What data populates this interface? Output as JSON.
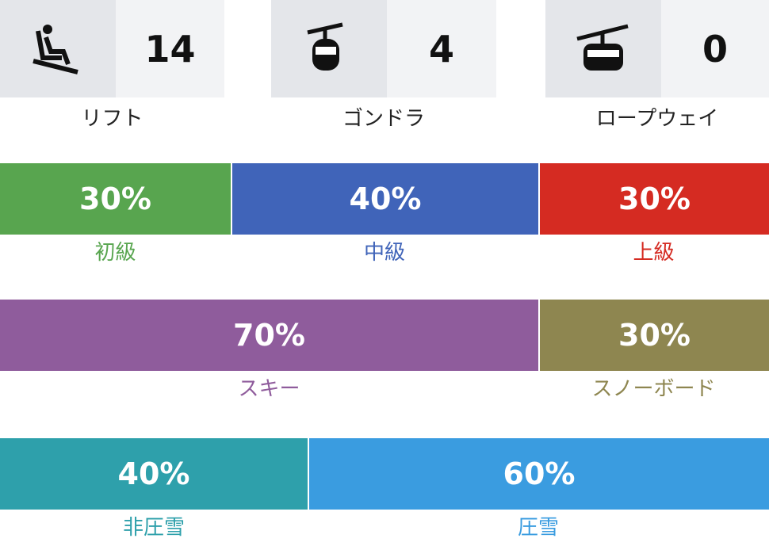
{
  "lifts": [
    {
      "label": "リフト",
      "count": "14"
    },
    {
      "label": "ゴンドラ",
      "count": "4"
    },
    {
      "label": "ロープウェイ",
      "count": "0"
    }
  ],
  "bars": [
    {
      "values": [
        30,
        40,
        30
      ],
      "value_labels": [
        "30%",
        "40%",
        "30%"
      ],
      "labels": [
        "初級",
        "中級",
        "上級"
      ],
      "colors": [
        "#58a54f",
        "#4064b9",
        "#d52b22"
      ]
    },
    {
      "values": [
        70,
        30
      ],
      "value_labels": [
        "70%",
        "30%"
      ],
      "labels": [
        "スキー",
        "スノーボード"
      ],
      "colors": [
        "#8f5c9c",
        "#8e8650"
      ]
    },
    {
      "values": [
        40,
        60
      ],
      "value_labels": [
        "40%",
        "60%"
      ],
      "labels": [
        "非圧雪",
        "圧雪"
      ],
      "colors": [
        "#2ea0ab",
        "#3a9ce0"
      ]
    }
  ]
}
